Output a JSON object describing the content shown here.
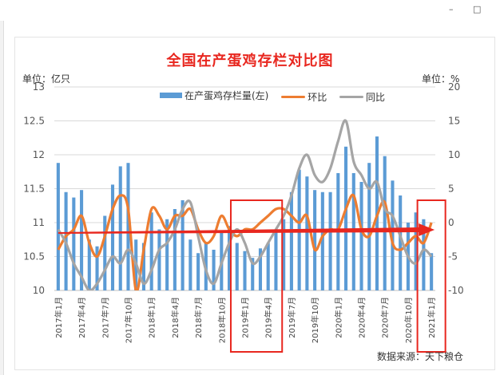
{
  "window": {
    "minimize_glyph": "–",
    "maximize_glyph": "□"
  },
  "title": "全国在产蛋鸡存栏对比图",
  "unit_left": "单位：亿只",
  "unit_right": "单位：%",
  "source": "数据来源：天下粮仓",
  "legend": {
    "bar": "在产蛋鸡存栏量(左)",
    "mom": "环比",
    "yoy": "同比"
  },
  "colors": {
    "bar": "#5b9bd5",
    "mom": "#ed7d31",
    "yoy": "#a5a5a5",
    "arrow": "#e8271f",
    "box": "#e8271f"
  },
  "chart_data": {
    "type": "bar",
    "title": "全国在产蛋鸡存栏对比图",
    "ylim_left": [
      10,
      13
    ],
    "ylim_right": [
      -10,
      20
    ],
    "yticks_left": [
      "10",
      "10.5",
      "11",
      "11.5",
      "12",
      "12.5",
      "13"
    ],
    "yticks_right": [
      "-10",
      "-5",
      "0",
      "5",
      "10",
      "15",
      "20"
    ],
    "x_tick_labels": [
      "2017年1月",
      "2017年4月",
      "2017年7月",
      "2017年10月",
      "2018年1月",
      "2018年4月",
      "2018年7月",
      "2018年10月",
      "2019年1月",
      "2019年4月",
      "2019年7月",
      "2019年10月",
      "2020年1月",
      "2020年4月",
      "2020年7月",
      "2020年10月",
      "2021年1月"
    ],
    "x_tick_index": [
      0,
      3,
      6,
      9,
      12,
      15,
      18,
      21,
      24,
      27,
      30,
      33,
      36,
      39,
      42,
      45,
      48
    ],
    "categories": [
      "2017-01",
      "2017-02",
      "2017-03",
      "2017-04",
      "2017-05",
      "2017-06",
      "2017-07",
      "2017-08",
      "2017-09",
      "2017-10",
      "2017-11",
      "2017-12",
      "2018-01",
      "2018-02",
      "2018-03",
      "2018-04",
      "2018-05",
      "2018-06",
      "2018-07",
      "2018-08",
      "2018-09",
      "2018-10",
      "2018-11",
      "2018-12",
      "2019-01",
      "2019-02",
      "2019-03",
      "2019-04",
      "2019-05",
      "2019-06",
      "2019-07",
      "2019-08",
      "2019-09",
      "2019-10",
      "2019-11",
      "2019-12",
      "2020-01",
      "2020-02",
      "2020-03",
      "2020-04",
      "2020-05",
      "2020-06",
      "2020-07",
      "2020-08",
      "2020-09",
      "2020-10",
      "2020-11",
      "2020-12",
      "2021-01"
    ],
    "series": [
      {
        "name": "在产蛋鸡存栏量(左)",
        "axis": "left",
        "type": "bar",
        "values": [
          11.88,
          11.45,
          11.37,
          11.48,
          10.75,
          10.65,
          11.1,
          11.56,
          11.83,
          11.88,
          10.75,
          10.7,
          11.15,
          10.9,
          11.05,
          11.2,
          11.33,
          10.75,
          10.55,
          10.7,
          10.6,
          10.85,
          10.95,
          10.7,
          10.58,
          10.48,
          10.62,
          10.7,
          10.9,
          11.05,
          11.45,
          11.78,
          11.68,
          11.48,
          11.45,
          11.45,
          11.73,
          12.12,
          11.73,
          11.6,
          11.88,
          12.27,
          11.98,
          11.62,
          11.4,
          11.0,
          11.15,
          11.05,
          10.55
        ]
      },
      {
        "name": "环比",
        "axis": "right",
        "type": "line",
        "values": [
          -4,
          -2,
          -1,
          1,
          -3,
          -5,
          -2,
          2,
          4,
          2,
          -10,
          -4,
          2,
          1,
          -1,
          1,
          1,
          2,
          -1,
          -3,
          -2,
          1,
          -1,
          -2,
          -1,
          -1,
          0,
          1,
          2,
          2,
          1,
          0,
          1,
          -4,
          -2,
          -1,
          -1,
          2,
          4,
          -1,
          -2,
          1,
          3,
          -3,
          -4,
          -3,
          -2,
          -3,
          0
        ]
      },
      {
        "name": "同比",
        "axis": "right",
        "type": "line",
        "values": [
          -1,
          -3,
          -6,
          -8,
          -10,
          -9,
          -7,
          -5,
          -6,
          -4,
          -6,
          -9,
          -7,
          -4,
          -3,
          -1,
          2,
          3,
          -2,
          -7,
          -9,
          -6,
          -3,
          -1,
          -3,
          -6,
          -5,
          -3,
          -1,
          1,
          4,
          8,
          10,
          7,
          6,
          8,
          12,
          15,
          9,
          7,
          5,
          6,
          2,
          1,
          -2,
          -5,
          -6,
          -4,
          -5
        ]
      }
    ],
    "highlight_ranges": [
      [
        "2019-01",
        "2019-04"
      ],
      [
        "2021-01",
        "2021-01"
      ]
    ],
    "trend_arrow": {
      "from": "2017-01",
      "to": "2021-01",
      "value_left": 11.0
    }
  }
}
